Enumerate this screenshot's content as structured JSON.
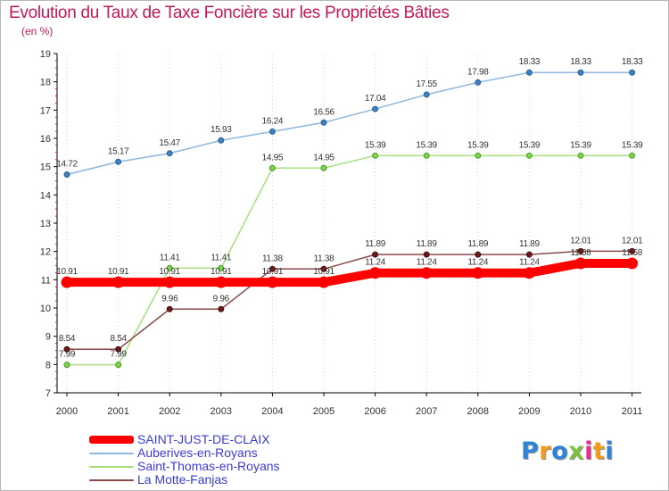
{
  "title": "Evolution du Taux de Taxe Foncière sur les Propriétés Bâties",
  "subtitle": "(en %)",
  "logo": {
    "text": "Proxiti",
    "colors": [
      "#2f84d6",
      "#f29a1a",
      "#2f84d6",
      "#7cc242",
      "#e8318f",
      "#f29a1a",
      "#2f84d6"
    ]
  },
  "chart_data": {
    "type": "line",
    "title": "Evolution du Taux de Taxe Foncière sur les Propriétés Bâties",
    "ylabel": "(en %)",
    "xlabel": "",
    "ylim": [
      7,
      19
    ],
    "yticks": [
      "7",
      "8",
      "9",
      "10",
      "11",
      "12",
      "13",
      "14",
      "15",
      "16",
      "17",
      "18",
      "19"
    ],
    "categories": [
      "2000",
      "2001",
      "2002",
      "2003",
      "2004",
      "2005",
      "2006",
      "2007",
      "2008",
      "2009",
      "2010",
      "2011"
    ],
    "series": [
      {
        "name": "SAINT-JUST-DE-CLAIX",
        "color": "#ff0000",
        "values": [
          10.91,
          10.91,
          10.91,
          10.91,
          10.91,
          10.91,
          11.24,
          11.24,
          11.24,
          11.24,
          11.58,
          11.58
        ],
        "labels": [
          "10.91",
          "10.91",
          "10.91",
          "10.91",
          "10.91",
          "10.91",
          "11.24",
          "11.24",
          "11.24",
          "11.24",
          "11.58",
          "11.58"
        ]
      },
      {
        "name": "Auberives-en-Royans",
        "color": "#3f82c4",
        "values": [
          14.72,
          15.17,
          15.47,
          15.93,
          16.24,
          16.56,
          17.04,
          17.55,
          17.98,
          18.33,
          18.33,
          18.33
        ],
        "labels": [
          "14.72",
          "15.17",
          "15.47",
          "15.93",
          "16.24",
          "16.56",
          "17.04",
          "17.55",
          "17.98",
          "18.33",
          "18.33",
          "18.33"
        ]
      },
      {
        "name": "Saint-Thomas-en-Royans",
        "color": "#6fcf3c",
        "values": [
          7.99,
          7.99,
          11.41,
          11.41,
          14.95,
          14.95,
          15.39,
          15.39,
          15.39,
          15.39,
          15.39,
          15.39
        ],
        "labels": [
          "7.99",
          "7.99",
          "11.41",
          "11.41",
          "14.95",
          "14.95",
          "15.39",
          "15.39",
          "15.39",
          "15.39",
          "15.39",
          "15.39"
        ]
      },
      {
        "name": "La Motte-Fanjas",
        "color": "#6b1a1a",
        "values": [
          8.54,
          8.54,
          9.96,
          9.96,
          11.38,
          11.38,
          11.89,
          11.89,
          11.89,
          11.89,
          12.01,
          12.01
        ],
        "labels": [
          "8.54",
          "8.54",
          "9.96",
          "9.96",
          "11.38",
          "11.38",
          "11.89",
          "11.89",
          "11.89",
          "11.89",
          "12.01",
          "12.01"
        ]
      }
    ]
  }
}
